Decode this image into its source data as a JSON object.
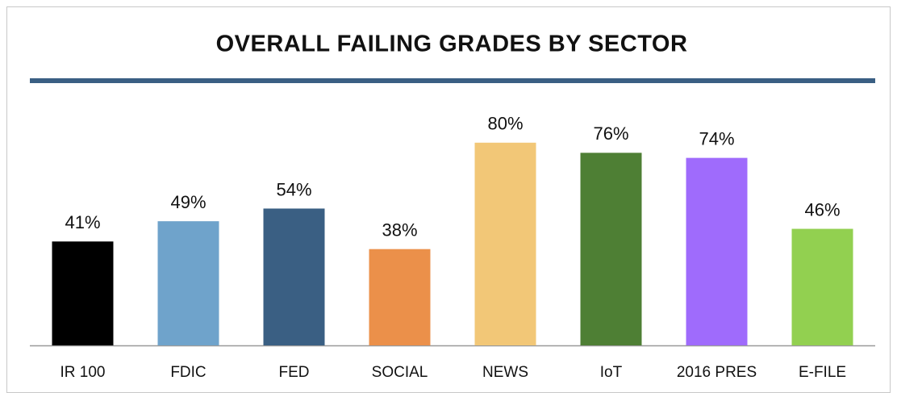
{
  "chart_data": {
    "type": "bar",
    "title": "OVERALL FAILING GRADES BY SECTOR",
    "categories": [
      "IR 100",
      "FDIC",
      "FED",
      "SOCIAL",
      "NEWS",
      "IoT",
      "2016 PRES",
      "E-FILE"
    ],
    "values": [
      41,
      49,
      54,
      38,
      80,
      76,
      74,
      46
    ],
    "value_labels": [
      "41%",
      "49%",
      "54%",
      "38%",
      "80%",
      "76%",
      "74%",
      "46%"
    ],
    "colors": [
      "#000000",
      "#6fa3cb",
      "#3a5f83",
      "#eb904a",
      "#f2c777",
      "#4e7f34",
      "#9f6bfc",
      "#92d050"
    ],
    "ylim": [
      0,
      100
    ]
  }
}
